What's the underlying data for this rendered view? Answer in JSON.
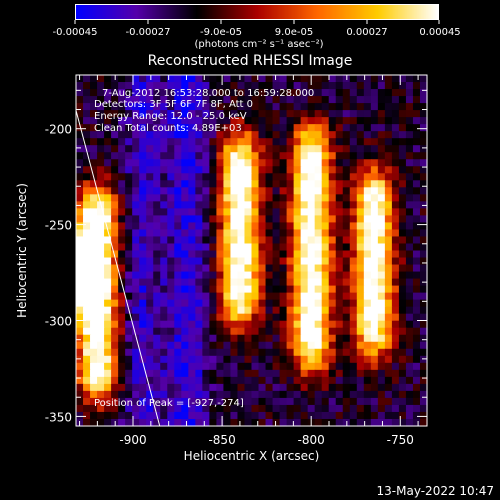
{
  "colorbar": {
    "tick_labels": [
      "-0.00045",
      "-0.00027",
      "-9.0e-05",
      "9.0e-05",
      "0.00027",
      "0.00045"
    ],
    "unit": "(photons cm⁻² s⁻¹ asec⁻²)",
    "range": [
      -0.00045,
      0.00045
    ],
    "colormap": [
      "#0000ff",
      "#5500aa",
      "#000000",
      "#aa0000",
      "#ff6600",
      "#ffcc00",
      "#ffffff"
    ]
  },
  "chart_data": {
    "type": "heatmap",
    "title": "Reconstructed RHESSI Image",
    "xlabel": "Heliocentric X (arcsec)",
    "ylabel": "Heliocentric Y (arcsec)",
    "xlim": [
      -932,
      -735
    ],
    "ylim": [
      -355,
      -172
    ],
    "x_ticks": [
      -900,
      -850,
      -800,
      -750
    ],
    "y_ticks": [
      -200,
      -250,
      -300,
      -350
    ],
    "bright_ridges": [
      {
        "x": -840,
        "y_min": -300,
        "y_max": -205
      },
      {
        "x": -800,
        "y_min": -330,
        "y_max": -195
      },
      {
        "x": -765,
        "y_min": -315,
        "y_max": -225
      },
      {
        "x": -920,
        "y_min": -340,
        "y_max": -230
      }
    ],
    "peak": {
      "x": -927,
      "y": -274
    },
    "limb_line": {
      "from": [
        -935,
        -180
      ],
      "to": [
        -885,
        -355
      ]
    }
  },
  "annotations": {
    "time_range": "7-Aug-2012 16:53:28.000 to 16:59:28.000",
    "detectors": "Detectors: 3F 5F 6F 7F 8F, Att 0",
    "energy_range": "Energy Range: 12.0 - 25.0 keV",
    "clean_counts": "Clean     Total counts: 4.89E+03",
    "peak_position": "Position of Peak = [-927,-274]"
  },
  "footer": {
    "timestamp": "13-May-2022 10:47"
  }
}
